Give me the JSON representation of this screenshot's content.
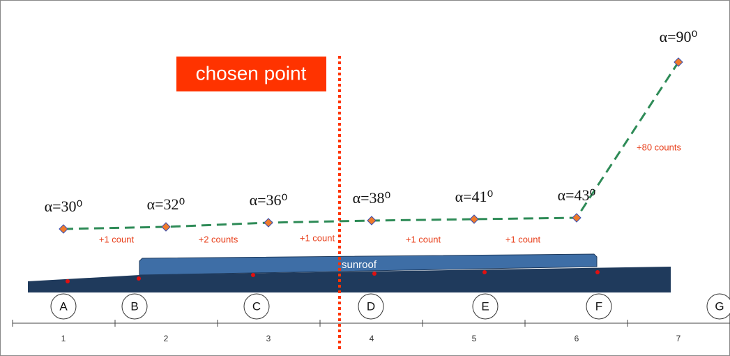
{
  "chosen_label": "chosen point",
  "surface_label": "sunroof",
  "points": [
    "α=30⁰",
    "α=32⁰",
    "α=36⁰",
    "α=38⁰",
    "α=41⁰",
    "α=43⁰",
    "α=90⁰"
  ],
  "segments": [
    "+1 count",
    "+2 counts",
    "+1 count",
    "+1 count",
    "+1 count",
    "+80 counts"
  ],
  "stations": [
    "A",
    "B",
    "C",
    "D",
    "E",
    "F",
    "G"
  ],
  "axis_labels": [
    "1",
    "2",
    "3",
    "4",
    "5",
    "6",
    "7"
  ]
}
